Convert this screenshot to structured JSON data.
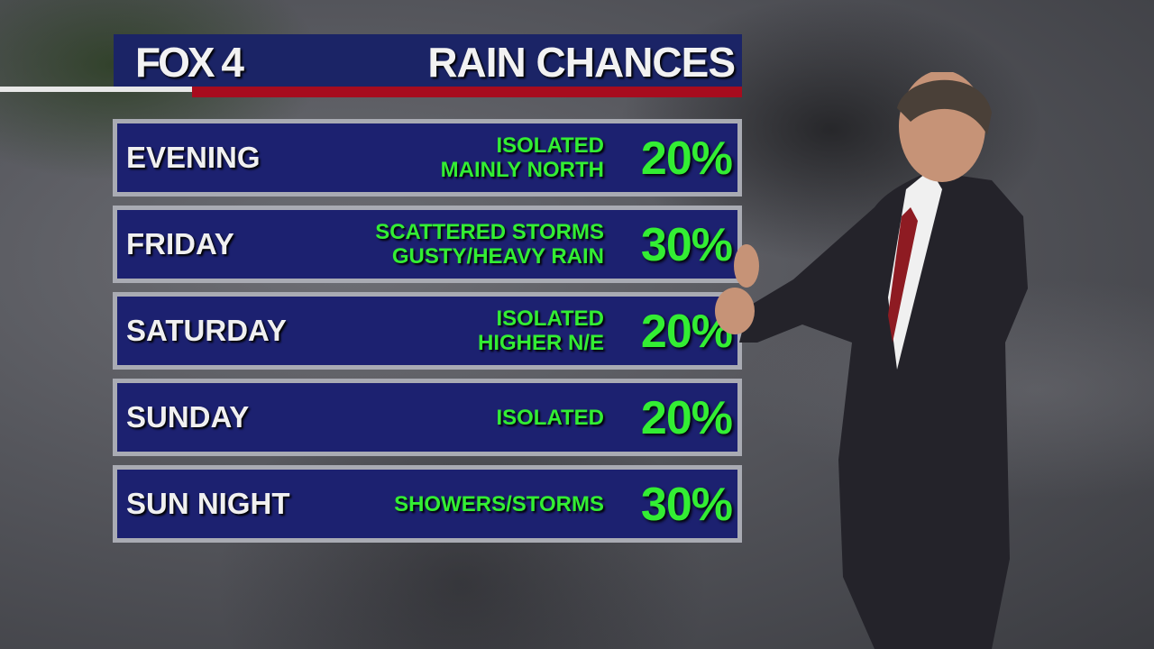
{
  "branding": {
    "logo": "FOX 4",
    "title": "RAIN CHANCES"
  },
  "colors": {
    "header_bg": "#1b2466",
    "row_bg": "#1c2170",
    "accent_red": "#a70c1e",
    "value_green": "#33ee33"
  },
  "rows": [
    {
      "period": "EVENING",
      "lines": [
        "ISOLATED",
        "MAINLY NORTH"
      ],
      "chance": "20%"
    },
    {
      "period": "FRIDAY",
      "lines": [
        "SCATTERED STORMS",
        "GUSTY/HEAVY RAIN"
      ],
      "chance": "30%"
    },
    {
      "period": "SATURDAY",
      "lines": [
        "ISOLATED",
        "HIGHER N/E"
      ],
      "chance": "20%"
    },
    {
      "period": "SUNDAY",
      "lines": [
        "ISOLATED"
      ],
      "chance": "20%"
    },
    {
      "period": "SUN NIGHT",
      "lines": [
        "SHOWERS/STORMS"
      ],
      "chance": "30%"
    }
  ]
}
